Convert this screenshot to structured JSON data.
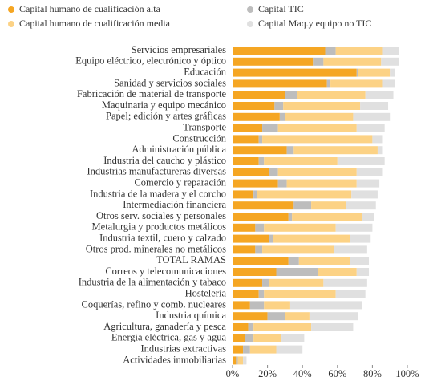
{
  "chart_data": {
    "type": "stacked-barh",
    "categories": [
      "Servicios empresariales",
      "Equipo eléctrico, electrónico y óptico",
      "Educación",
      "Sanidad y servicios sociales",
      "Fabricación de material de transporte",
      "Maquinaria y equipo mecánico",
      "Papel; edición y artes gráficas",
      "Transporte",
      "Construcción",
      "Administración pública",
      "Industria del caucho y plástico",
      "Industrias manufactureras diversas",
      "Comercio y reparación",
      "Industria de la madera y el corcho",
      "Intermediación financiera",
      "Otros serv. sociales y  personales",
      "Metalurgia y  productos metálicos",
      "Industria textil, cuero y calzado",
      "Otros prod. minerales no metálicos",
      "TOTAL RAMAS",
      "Correos y telecomunicaciones",
      "Industria de la alimentación y tabaco",
      "Hostelería",
      "Coquerías, refino y comb. nucleares",
      "Industria química",
      "Agricultura, ganadería y pesca",
      "Energía eléctrica, gas y agua",
      "Industrias extractivas",
      "Actividades inmobiliarias"
    ],
    "series": [
      {
        "name": "Capital humano de cualificación alta",
        "color": "#f5a623",
        "values": [
          53,
          46,
          71,
          54,
          30,
          24,
          27,
          17,
          15,
          31,
          15,
          21,
          26,
          12,
          35,
          32,
          13,
          21,
          13,
          32,
          25,
          17,
          15,
          10,
          20,
          9,
          7,
          6,
          2
        ]
      },
      {
        "name": "Capital TIC",
        "color": "#bdbdbd",
        "values": [
          6,
          6,
          1,
          2,
          7,
          5,
          3,
          9,
          2,
          4,
          3,
          5,
          5,
          2,
          10,
          2,
          5,
          2,
          4,
          6,
          24,
          4,
          3,
          8,
          10,
          3,
          5,
          4,
          1
        ]
      },
      {
        "name": "Capital humano de cualificación media",
        "color": "#fcd285",
        "values": [
          27,
          33,
          18,
          30,
          39,
          44,
          39,
          45,
          63,
          48,
          42,
          45,
          40,
          54,
          20,
          40,
          41,
          44,
          41,
          29,
          22,
          31,
          41,
          15,
          14,
          33,
          16,
          15,
          3
        ]
      },
      {
        "name": "Capital Maq.y equipo no TIC",
        "color": "#e0e0e0",
        "values": [
          9,
          10,
          3,
          7,
          16,
          16,
          21,
          16,
          6,
          3,
          27,
          15,
          13,
          15,
          17,
          7,
          21,
          12,
          19,
          11,
          7,
          25,
          17,
          41,
          28,
          24,
          13,
          15,
          2
        ]
      }
    ],
    "xlim": [
      0,
      100
    ],
    "xticks": [
      {
        "value": 0,
        "label": "0%"
      },
      {
        "value": 20,
        "label": "20%"
      },
      {
        "value": 40,
        "label": "40%"
      },
      {
        "value": 60,
        "label": "60%"
      },
      {
        "value": 80,
        "label": "80%"
      },
      {
        "value": 100,
        "label": "100%"
      }
    ]
  }
}
